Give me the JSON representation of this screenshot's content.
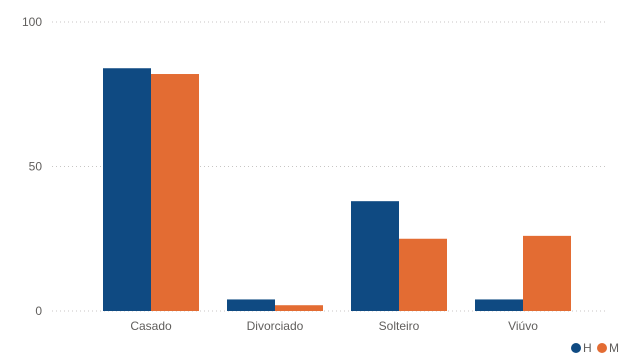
{
  "chart_data": {
    "type": "bar",
    "categories": [
      "Casado",
      "Divorciado",
      "Solteiro",
      "Viúvo"
    ],
    "series": [
      {
        "name": "H",
        "color": "#0f4a82",
        "values": [
          84,
          4,
          38,
          4
        ]
      },
      {
        "name": "M",
        "color": "#e36c33",
        "values": [
          82,
          2,
          25,
          26
        ]
      }
    ],
    "ylim": [
      0,
      100
    ],
    "yticks": [
      0,
      50,
      100
    ],
    "grid": true,
    "legend_position": "bottom-right"
  }
}
